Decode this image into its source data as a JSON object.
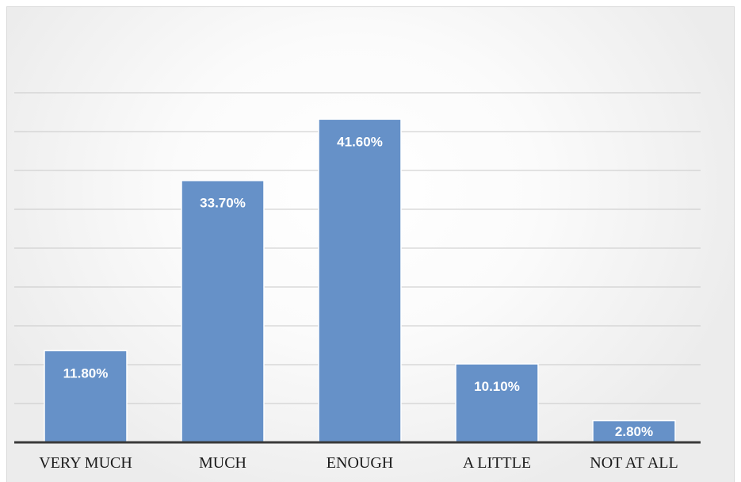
{
  "chart_data": {
    "type": "bar",
    "categories": [
      "VERY MUCH",
      "MUCH",
      "ENOUGH",
      "A LITTLE",
      "NOT AT ALL"
    ],
    "values": [
      11.8,
      33.7,
      41.6,
      10.1,
      2.8
    ],
    "data_labels": [
      "11.80%",
      "33.70%",
      "41.60%",
      "10.10%",
      "2.80%"
    ],
    "ylim": [
      0,
      45
    ],
    "grid": true,
    "bar_color": "#6691c8",
    "title": "",
    "xlabel": "",
    "ylabel": ""
  }
}
